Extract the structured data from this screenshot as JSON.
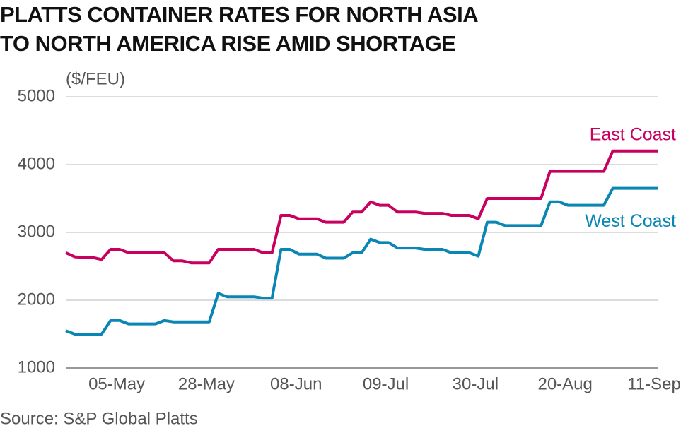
{
  "chart_data": {
    "type": "line",
    "title": [
      "PLATTS CONTAINER RATES FOR NORTH ASIA",
      "TO NORTH AMERICA RISE AMID SHORTAGE"
    ],
    "y_label": "($/FEU)",
    "source": "Source: S&P Global Platts",
    "categories": [
      null,
      null,
      null,
      null,
      null,
      null,
      "05-May",
      null,
      null,
      null,
      null,
      null,
      null,
      null,
      null,
      null,
      "28-May",
      null,
      null,
      null,
      null,
      null,
      null,
      null,
      null,
      null,
      "08-Jun",
      null,
      null,
      null,
      null,
      null,
      null,
      null,
      null,
      null,
      "09-Jul",
      null,
      null,
      null,
      null,
      null,
      null,
      null,
      null,
      null,
      "30-Jul",
      null,
      null,
      null,
      null,
      null,
      null,
      null,
      null,
      null,
      "20-Aug",
      null,
      null,
      null,
      null,
      null,
      null,
      null,
      null,
      null,
      "11-Sep"
    ],
    "series": [
      {
        "name": "East Coast",
        "color": "#c8005f",
        "values": [
          2700,
          2640,
          2630,
          2630,
          2600,
          2750,
          2750,
          2700,
          2700,
          2700,
          2700,
          2700,
          2580,
          2580,
          2550,
          2550,
          2550,
          2750,
          2750,
          2750,
          2750,
          2750,
          2700,
          2700,
          3250,
          3250,
          3200,
          3200,
          3200,
          3150,
          3150,
          3150,
          3300,
          3300,
          3450,
          3400,
          3400,
          3300,
          3300,
          3300,
          3280,
          3280,
          3280,
          3250,
          3250,
          3250,
          3200,
          3500,
          3500,
          3500,
          3500,
          3500,
          3500,
          3500,
          3900,
          3900,
          3900,
          3900,
          3900,
          3900,
          3900,
          4200,
          4200,
          4200,
          4200,
          4200,
          4200
        ]
      },
      {
        "name": "West Coast",
        "color": "#0a86b4",
        "values": [
          1550,
          1500,
          1500,
          1500,
          1500,
          1700,
          1700,
          1650,
          1650,
          1650,
          1650,
          1700,
          1680,
          1680,
          1680,
          1680,
          1680,
          2100,
          2050,
          2050,
          2050,
          2050,
          2030,
          2030,
          2750,
          2750,
          2680,
          2680,
          2680,
          2620,
          2620,
          2620,
          2700,
          2700,
          2900,
          2850,
          2850,
          2770,
          2770,
          2770,
          2750,
          2750,
          2750,
          2700,
          2700,
          2700,
          2650,
          3150,
          3150,
          3100,
          3100,
          3100,
          3100,
          3100,
          3450,
          3450,
          3400,
          3400,
          3400,
          3400,
          3400,
          3650,
          3650,
          3650,
          3650,
          3650,
          3650
        ]
      }
    ],
    "ylim": [
      1000,
      5000
    ],
    "yticks": [
      1000,
      2000,
      3000,
      4000,
      5000
    ],
    "grid": true
  }
}
